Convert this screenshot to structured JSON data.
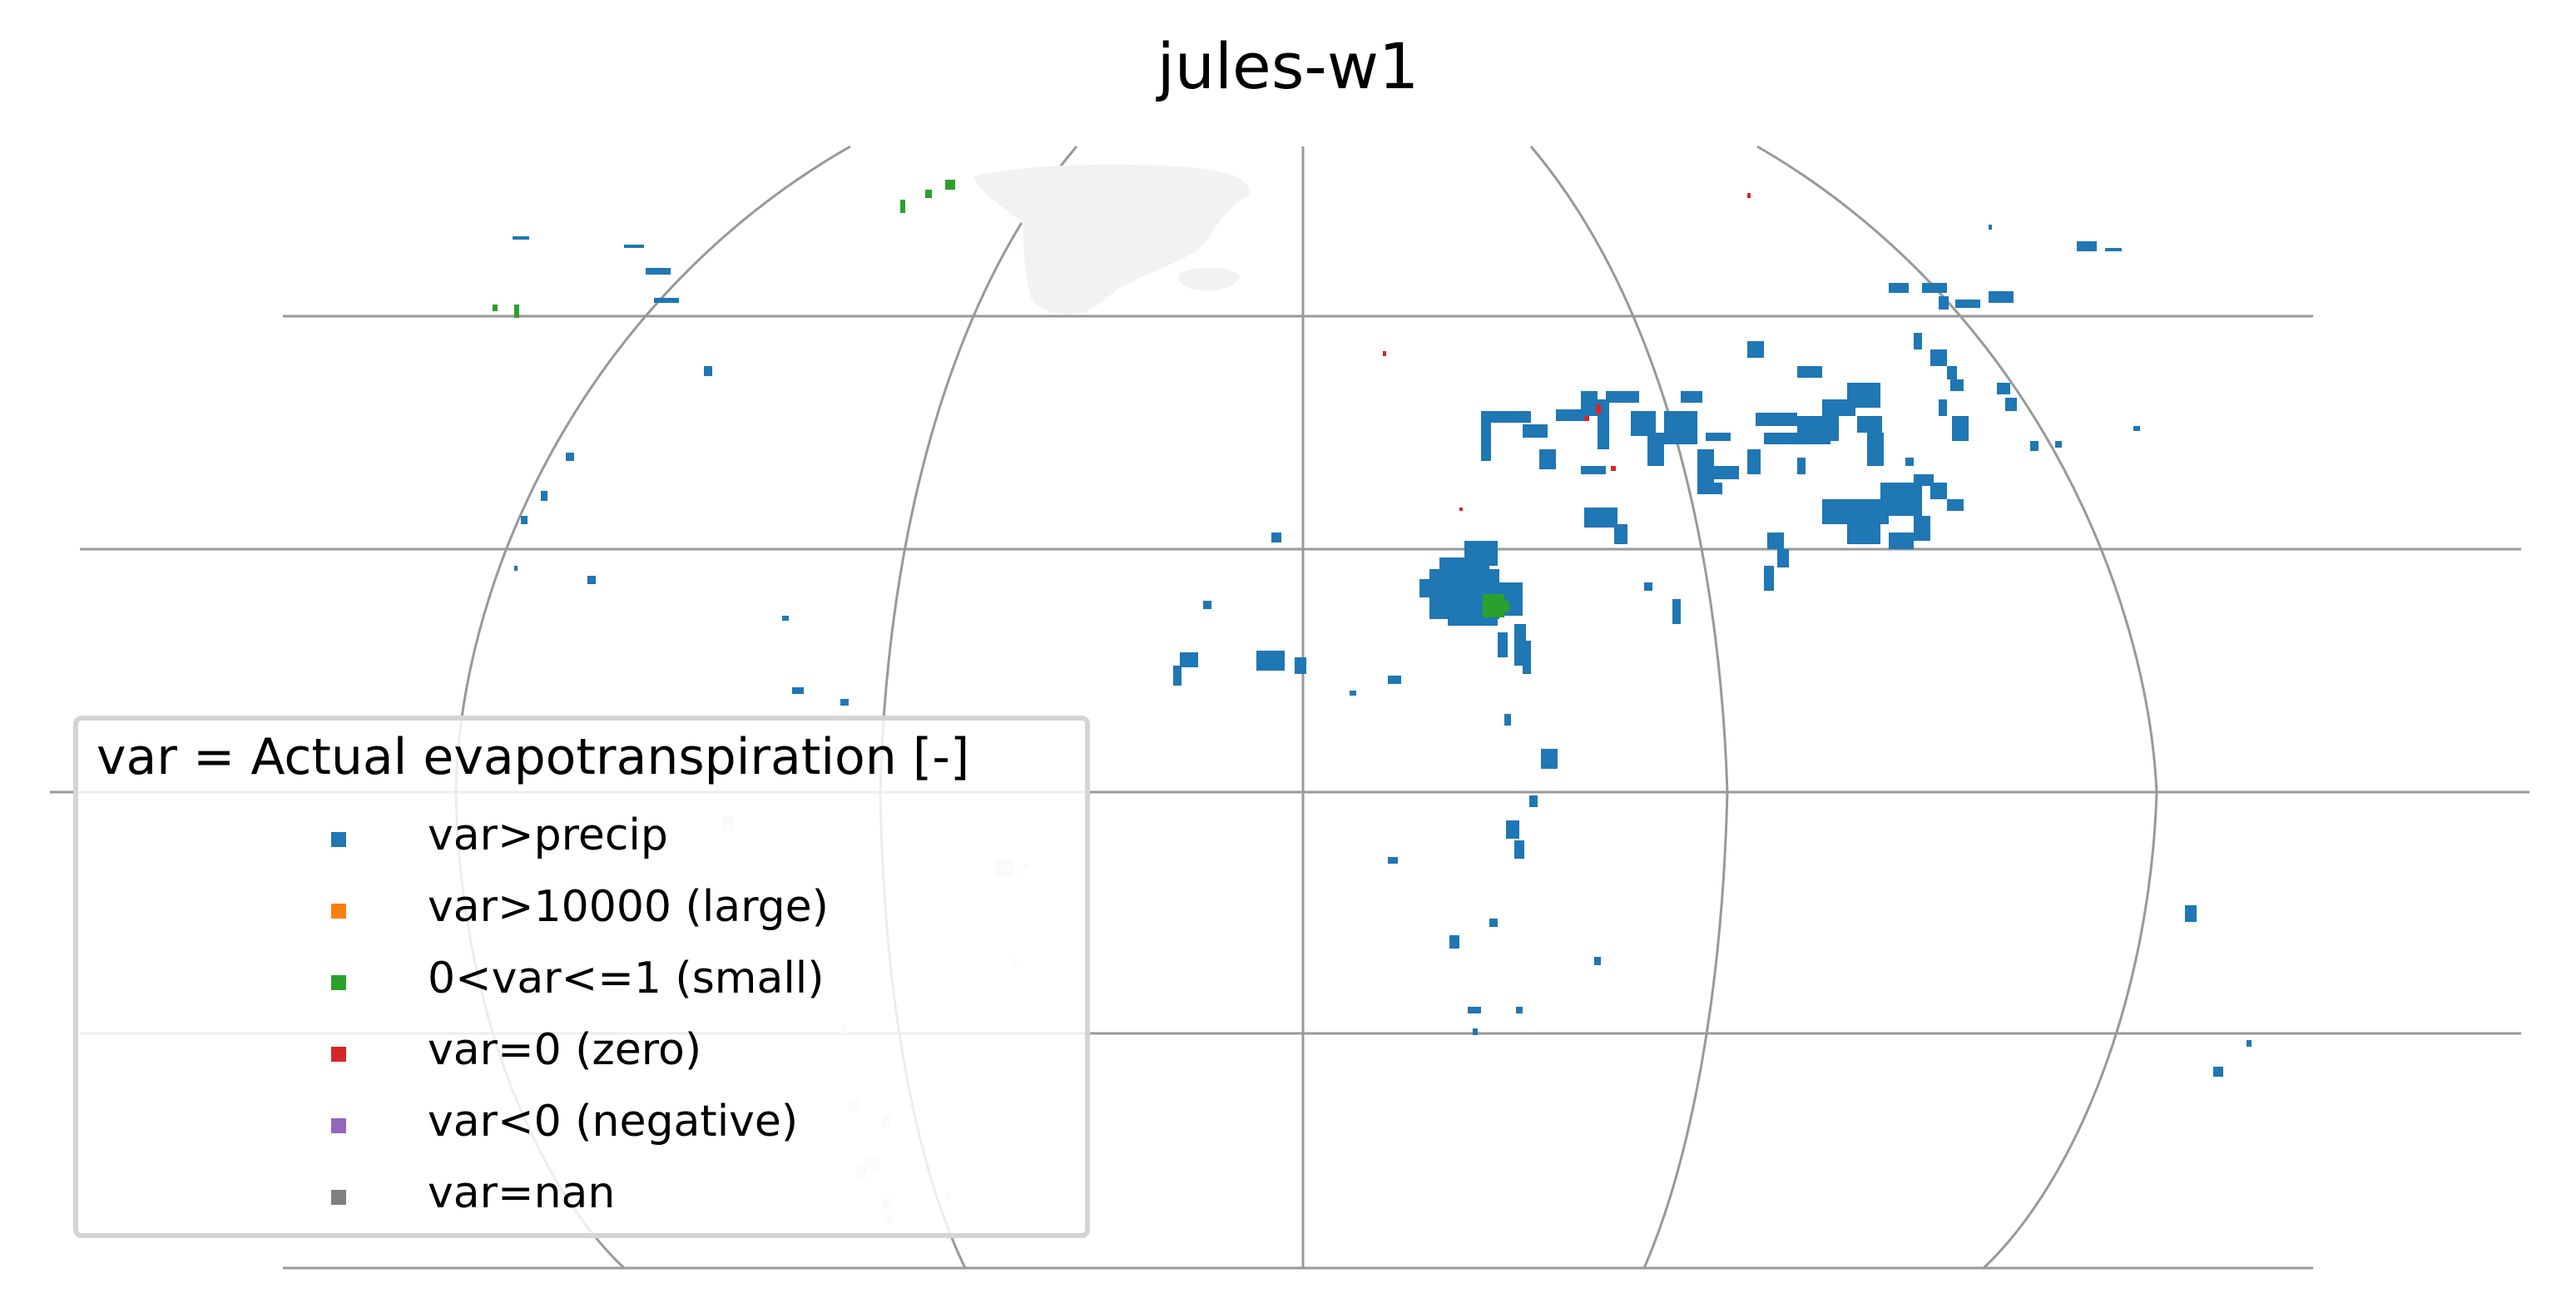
{
  "figure": {
    "title": "jules-w1"
  },
  "legend": {
    "title": "var = Actual evapotranspiration [-]",
    "items": [
      {
        "label": "var>precip",
        "color": "#1f77b4"
      },
      {
        "label": "var>10000 (large)",
        "color": "#ff7f0e"
      },
      {
        "label": "0<var<=1 (small)",
        "color": "#2ca02c"
      },
      {
        "label": "var=0 (zero)",
        "color": "#d62728"
      },
      {
        "label": "var<0 (negative)",
        "color": "#9467bd"
      },
      {
        "label": "var=nan",
        "color": "#7f7f7f"
      }
    ]
  },
  "map": {
    "projection": "Robinson-like (curved meridians)",
    "gridlines": true,
    "gridline_color": "#999999",
    "land_mask_color": "#f2f2f2"
  }
}
